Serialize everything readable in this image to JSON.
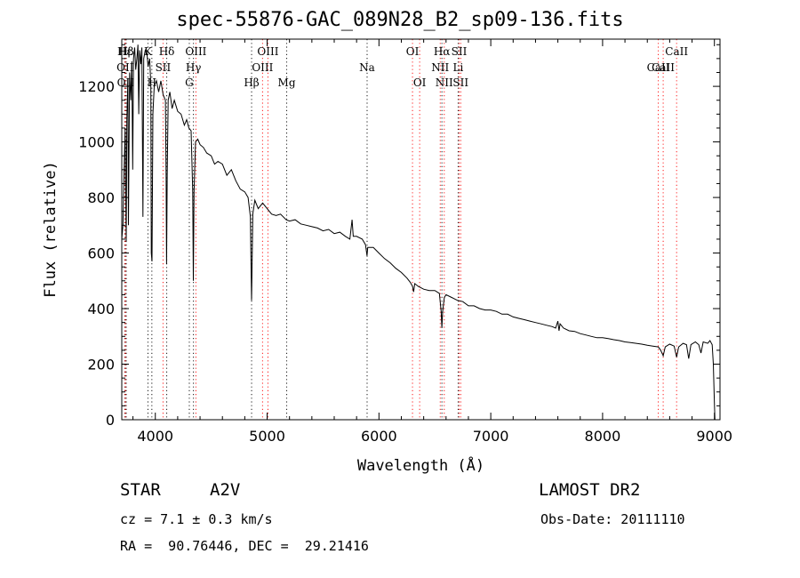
{
  "chart_data": {
    "type": "line",
    "title": "spec-55876-GAC_089N28_B2_sp09-136.fits",
    "xlabel": "Wavelength (Å)",
    "ylabel": "Flux (relative)",
    "xlim": [
      3700,
      9050
    ],
    "ylim": [
      0,
      1370
    ],
    "x_ticks": [
      4000,
      5000,
      6000,
      7000,
      8000,
      9000
    ],
    "y_ticks": [
      0,
      200,
      400,
      600,
      800,
      1000,
      1200
    ],
    "grid": false,
    "series": [
      {
        "points": [
          [
            3700,
            650
          ],
          [
            3710,
            700
          ],
          [
            3720,
            880
          ],
          [
            3730,
            1050
          ],
          [
            3740,
            640
          ],
          [
            3745,
            1080
          ],
          [
            3755,
            1230
          ],
          [
            3760,
            700
          ],
          [
            3770,
            1250
          ],
          [
            3780,
            1150
          ],
          [
            3790,
            1290
          ],
          [
            3798,
            900
          ],
          [
            3805,
            1300
          ],
          [
            3815,
            1340
          ],
          [
            3825,
            1260
          ],
          [
            3835,
            1300
          ],
          [
            3845,
            1350
          ],
          [
            3852,
            1100
          ],
          [
            3860,
            1330
          ],
          [
            3870,
            1280
          ],
          [
            3880,
            1340
          ],
          [
            3889,
            730
          ],
          [
            3896,
            1300
          ],
          [
            3910,
            1330
          ],
          [
            3925,
            1320
          ],
          [
            3935,
            1270
          ],
          [
            3950,
            1300
          ],
          [
            3960,
            1200
          ],
          [
            3964,
            600
          ],
          [
            3970,
            570
          ],
          [
            3978,
            1100
          ],
          [
            3990,
            1200
          ],
          [
            4010,
            1220
          ],
          [
            4030,
            1180
          ],
          [
            4050,
            1220
          ],
          [
            4070,
            1170
          ],
          [
            4090,
            1150
          ],
          [
            4097,
            870
          ],
          [
            4101,
            560
          ],
          [
            4106,
            880
          ],
          [
            4115,
            1150
          ],
          [
            4130,
            1180
          ],
          [
            4150,
            1120
          ],
          [
            4170,
            1150
          ],
          [
            4200,
            1110
          ],
          [
            4230,
            1100
          ],
          [
            4260,
            1060
          ],
          [
            4280,
            1080
          ],
          [
            4300,
            1050
          ],
          [
            4320,
            1040
          ],
          [
            4334,
            820
          ],
          [
            4340,
            500
          ],
          [
            4346,
            820
          ],
          [
            4360,
            1000
          ],
          [
            4380,
            1010
          ],
          [
            4400,
            990
          ],
          [
            4430,
            980
          ],
          [
            4460,
            960
          ],
          [
            4500,
            950
          ],
          [
            4530,
            920
          ],
          [
            4560,
            930
          ],
          [
            4600,
            920
          ],
          [
            4640,
            880
          ],
          [
            4680,
            900
          ],
          [
            4720,
            860
          ],
          [
            4760,
            830
          ],
          [
            4800,
            820
          ],
          [
            4830,
            800
          ],
          [
            4850,
            730
          ],
          [
            4856,
            560
          ],
          [
            4861,
            430
          ],
          [
            4866,
            580
          ],
          [
            4872,
            740
          ],
          [
            4890,
            790
          ],
          [
            4920,
            760
          ],
          [
            4960,
            780
          ],
          [
            5000,
            760
          ],
          [
            5040,
            740
          ],
          [
            5080,
            735
          ],
          [
            5120,
            740
          ],
          [
            5170,
            720
          ],
          [
            5200,
            715
          ],
          [
            5250,
            720
          ],
          [
            5300,
            705
          ],
          [
            5350,
            700
          ],
          [
            5400,
            695
          ],
          [
            5450,
            690
          ],
          [
            5500,
            680
          ],
          [
            5550,
            685
          ],
          [
            5600,
            670
          ],
          [
            5650,
            675
          ],
          [
            5700,
            660
          ],
          [
            5740,
            650
          ],
          [
            5760,
            720
          ],
          [
            5770,
            660
          ],
          [
            5800,
            660
          ],
          [
            5850,
            650
          ],
          [
            5880,
            630
          ],
          [
            5893,
            590
          ],
          [
            5900,
            620
          ],
          [
            5950,
            620
          ],
          [
            6000,
            600
          ],
          [
            6050,
            580
          ],
          [
            6100,
            565
          ],
          [
            6150,
            545
          ],
          [
            6200,
            530
          ],
          [
            6250,
            510
          ],
          [
            6280,
            495
          ],
          [
            6300,
            480
          ],
          [
            6310,
            460
          ],
          [
            6320,
            490
          ],
          [
            6350,
            480
          ],
          [
            6400,
            470
          ],
          [
            6450,
            465
          ],
          [
            6500,
            465
          ],
          [
            6540,
            455
          ],
          [
            6556,
            390
          ],
          [
            6563,
            330
          ],
          [
            6570,
            390
          ],
          [
            6585,
            440
          ],
          [
            6600,
            450
          ],
          [
            6650,
            440
          ],
          [
            6700,
            430
          ],
          [
            6750,
            425
          ],
          [
            6800,
            410
          ],
          [
            6850,
            410
          ],
          [
            6900,
            400
          ],
          [
            6950,
            395
          ],
          [
            7000,
            395
          ],
          [
            7050,
            390
          ],
          [
            7100,
            380
          ],
          [
            7150,
            380
          ],
          [
            7200,
            370
          ],
          [
            7250,
            365
          ],
          [
            7300,
            360
          ],
          [
            7350,
            355
          ],
          [
            7400,
            350
          ],
          [
            7450,
            345
          ],
          [
            7500,
            340
          ],
          [
            7550,
            335
          ],
          [
            7580,
            330
          ],
          [
            7600,
            355
          ],
          [
            7610,
            320
          ],
          [
            7620,
            345
          ],
          [
            7650,
            330
          ],
          [
            7700,
            320
          ],
          [
            7750,
            318
          ],
          [
            7800,
            310
          ],
          [
            7850,
            305
          ],
          [
            7900,
            300
          ],
          [
            7950,
            295
          ],
          [
            8000,
            295
          ],
          [
            8050,
            292
          ],
          [
            8100,
            288
          ],
          [
            8150,
            285
          ],
          [
            8200,
            280
          ],
          [
            8250,
            278
          ],
          [
            8300,
            275
          ],
          [
            8350,
            272
          ],
          [
            8400,
            268
          ],
          [
            8450,
            265
          ],
          [
            8498,
            262
          ],
          [
            8520,
            250
          ],
          [
            8542,
            230
          ],
          [
            8560,
            262
          ],
          [
            8600,
            272
          ],
          [
            8640,
            265
          ],
          [
            8662,
            225
          ],
          [
            8680,
            262
          ],
          [
            8720,
            275
          ],
          [
            8750,
            270
          ],
          [
            8770,
            220
          ],
          [
            8790,
            270
          ],
          [
            8830,
            280
          ],
          [
            8860,
            270
          ],
          [
            8880,
            240
          ],
          [
            8900,
            280
          ],
          [
            8940,
            275
          ],
          [
            8960,
            285
          ],
          [
            8980,
            270
          ],
          [
            8990,
            200
          ],
          [
            9000,
            60
          ],
          [
            9005,
            0
          ]
        ]
      }
    ],
    "lines": [
      {
        "label": "Hε",
        "wl": 3727,
        "row": 0,
        "color": "#000000"
      },
      {
        "label": "OII",
        "wl": 3730,
        "row": 1,
        "color": "#ff0000"
      },
      {
        "label": "OII",
        "wl": 3734,
        "row": 2,
        "color": "#ff0000"
      },
      {
        "label": "Hβ",
        "wl": 3740,
        "row": 0,
        "color": "#000000"
      },
      {
        "label": "K",
        "wl": 3934,
        "row": 0,
        "color": "#000000"
      },
      {
        "label": "H",
        "wl": 3969,
        "row": 2,
        "color": "#000000"
      },
      {
        "label": "Hδ",
        "wl": 4102,
        "row": 0,
        "color": "#000000"
      },
      {
        "label": "SII",
        "wl": 4069,
        "row": 1,
        "color": "#ff0000"
      },
      {
        "label": "OIII",
        "wl": 4363,
        "row": 0,
        "color": "#ff0000"
      },
      {
        "label": "Hγ",
        "wl": 4341,
        "row": 1,
        "color": "#000000"
      },
      {
        "label": "G",
        "wl": 4304,
        "row": 2,
        "color": "#000000"
      },
      {
        "label": "Hβ",
        "wl": 4861,
        "row": 2,
        "color": "#000000"
      },
      {
        "label": "OIII",
        "wl": 5007,
        "row": 0,
        "color": "#ff0000"
      },
      {
        "label": "OIII",
        "wl": 4959,
        "row": 1,
        "color": "#ff0000"
      },
      {
        "label": "Mg",
        "wl": 5175,
        "row": 2,
        "color": "#000000"
      },
      {
        "label": "Na",
        "wl": 5894,
        "row": 1,
        "color": "#000000"
      },
      {
        "label": "OI",
        "wl": 6300,
        "row": 0,
        "color": "#ff0000"
      },
      {
        "label": "OI",
        "wl": 6364,
        "row": 2,
        "color": "#ff0000"
      },
      {
        "label": "Hα",
        "wl": 6563,
        "row": 0,
        "color": "#000000"
      },
      {
        "label": "NII",
        "wl": 6548,
        "row": 1,
        "color": "#ff0000"
      },
      {
        "label": "NII",
        "wl": 6584,
        "row": 2,
        "color": "#ff0000"
      },
      {
        "label": "SII",
        "wl": 6717,
        "row": 0,
        "color": "#ff0000"
      },
      {
        "label": "SII",
        "wl": 6731,
        "row": 2,
        "color": "#ff0000"
      },
      {
        "label": "Li",
        "wl": 6708,
        "row": 1,
        "color": "#000000"
      },
      {
        "label": "CaII",
        "wl": 8662,
        "row": 0,
        "color": "#ff0000"
      },
      {
        "label": "CaII",
        "wl": 8498,
        "row": 1,
        "color": "#ff0000"
      },
      {
        "label": "CaII",
        "wl": 8542,
        "row": 1,
        "color": "#ff0000"
      }
    ]
  },
  "info": {
    "object_type": "STAR",
    "subclass": "A2V",
    "survey": "LAMOST DR2",
    "redshift": "cz = 7.1 ± 0.3 km/s",
    "obs_date": "Obs-Date: 20111110",
    "coords": "RA =  90.76446, DEC =  29.21416"
  }
}
